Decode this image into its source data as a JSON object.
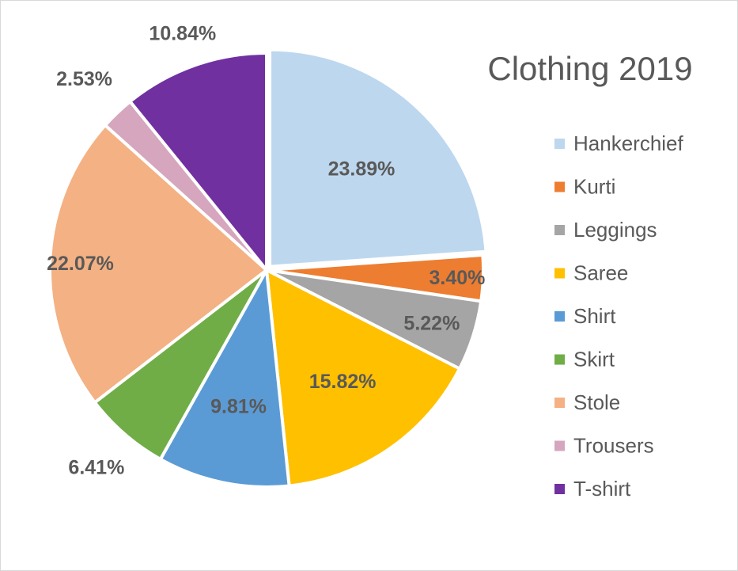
{
  "chart_data": {
    "type": "pie",
    "title": "Clothing 2019",
    "categories": [
      "Hankerchief",
      "Kurti",
      "Leggings",
      "Saree",
      "Shirt",
      "Skirt",
      "Stole",
      "Trousers",
      "T-shirt"
    ],
    "values": [
      23.89,
      3.4,
      5.22,
      15.82,
      9.81,
      6.41,
      22.07,
      2.53,
      10.84
    ],
    "data_labels": [
      "23.89%",
      "3.40%",
      "5.22%",
      "15.82%",
      "9.81%",
      "6.41%",
      "22.07%",
      "2.53%",
      "10.84%"
    ],
    "colors": [
      "#bdd7ee",
      "#ed7d31",
      "#a5a5a5",
      "#ffc000",
      "#5b9bd5",
      "#70ad47",
      "#f4b183",
      "#d5a6bd",
      "#7030a0"
    ],
    "exploded": "Hankerchief",
    "legend_position": "right"
  }
}
